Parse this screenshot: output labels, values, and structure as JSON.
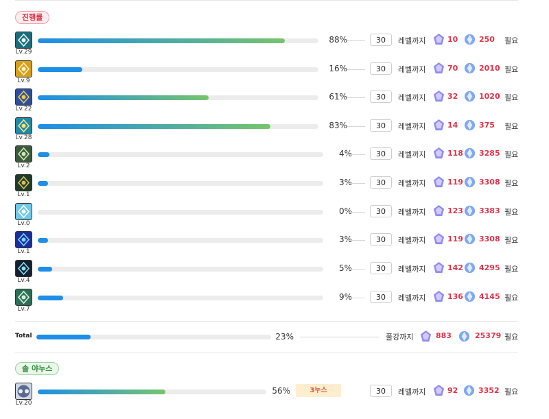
{
  "section_progress": "진행률",
  "section_sol": "솔 야누스",
  "level_until": "레벨까지",
  "need": "필요",
  "rows": [
    {
      "icon": "skill-icon-1",
      "level": "Lv.29",
      "percent": "88%",
      "progress": 0.88,
      "target": "30",
      "gem1": "10",
      "gem2": "250",
      "bg": "#1b6d7a",
      "fg": "#e8f7ff"
    },
    {
      "icon": "skill-icon-2",
      "level": "Lv.9",
      "percent": "16%",
      "progress": 0.16,
      "target": "30",
      "gem1": "70",
      "gem2": "2010",
      "bg": "#d8a01a",
      "fg": "#fff2c8"
    },
    {
      "icon": "skill-icon-3",
      "level": "Lv.22",
      "percent": "61%",
      "progress": 0.61,
      "target": "30",
      "gem1": "32",
      "gem2": "1020",
      "bg": "#2b4f9e",
      "fg": "#f2c94c"
    },
    {
      "icon": "skill-icon-4",
      "level": "Lv.28",
      "percent": "83%",
      "progress": 0.83,
      "target": "30",
      "gem1": "14",
      "gem2": "375",
      "bg": "#1f8aa8",
      "fg": "#ffe27a"
    },
    {
      "icon": "skill-icon-5",
      "level": "Lv.2",
      "percent": "4%",
      "progress": 0.04,
      "target": "30",
      "gem1": "118",
      "gem2": "3285",
      "bg": "#3c5a3b",
      "fg": "#cfe9b8"
    },
    {
      "icon": "skill-icon-6",
      "level": "Lv.1",
      "percent": "3%",
      "progress": 0.03,
      "target": "30",
      "gem1": "119",
      "gem2": "3308",
      "bg": "#1f3b2a",
      "fg": "#d9c25a"
    },
    {
      "icon": "skill-icon-7",
      "level": "Lv.0",
      "percent": "0%",
      "progress": 0.0,
      "target": "30",
      "gem1": "123",
      "gem2": "3383",
      "bg": "#6fc9e8",
      "fg": "#ffffff"
    },
    {
      "icon": "skill-icon-8",
      "level": "Lv.1",
      "percent": "3%",
      "progress": 0.03,
      "target": "30",
      "gem1": "119",
      "gem2": "3308",
      "bg": "#1a2f9a",
      "fg": "#7fd4ff"
    },
    {
      "icon": "skill-icon-9",
      "level": "Lv.4",
      "percent": "5%",
      "progress": 0.05,
      "target": "30",
      "gem1": "142",
      "gem2": "4295",
      "bg": "#152030",
      "fg": "#86e0f0"
    },
    {
      "icon": "skill-icon-10",
      "level": "Lv.7",
      "percent": "9%",
      "progress": 0.09,
      "target": "30",
      "gem1": "136",
      "gem2": "4145",
      "bg": "#2c6e58",
      "fg": "#d6f5e0"
    }
  ],
  "total": {
    "label": "Total",
    "percent": "23%",
    "progress": 0.23,
    "until": "풀강까지",
    "gem1": "883",
    "gem2": "25379"
  },
  "sol": {
    "level": "Lv.20",
    "percent": "56%",
    "progress": 0.56,
    "tag": "3누스",
    "target": "30",
    "gem1": "92",
    "gem2": "3352"
  },
  "colors": {
    "accent_red": "#e0344b",
    "bar_blue": "#1e8ee6",
    "bar_green": "#77c46d"
  }
}
